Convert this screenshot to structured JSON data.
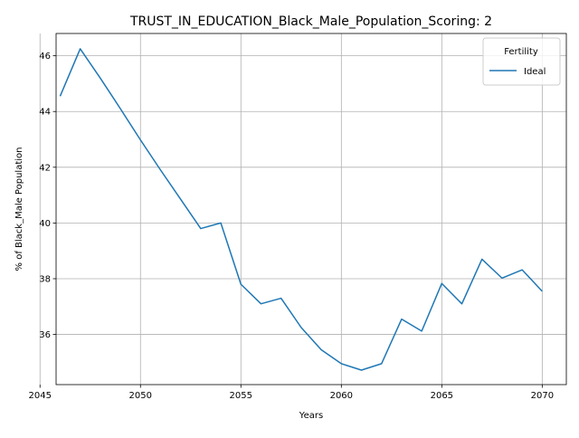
{
  "chart_data": {
    "type": "line",
    "title": "TRUST_IN_EDUCATION_Black_Male_Population_Scoring: 2",
    "xlabel": "Years",
    "ylabel": "% of Black_Male Population",
    "xlim": [
      2045.8,
      2071.2
    ],
    "ylim": [
      34.2,
      46.8
    ],
    "xticks": [
      2045,
      2050,
      2055,
      2060,
      2065,
      2070
    ],
    "yticks": [
      36,
      38,
      40,
      42,
      44,
      46
    ],
    "grid": true,
    "legend": {
      "title": "Fertility",
      "position": "top-right"
    },
    "series": [
      {
        "name": "Ideal",
        "color": "#1f77b4",
        "x": [
          2046,
          2047,
          2048,
          2049,
          2050,
          2051,
          2052,
          2053,
          2054,
          2055,
          2056,
          2057,
          2058,
          2059,
          2060,
          2061,
          2062,
          2063,
          2064,
          2065,
          2066,
          2067,
          2068,
          2069,
          2070
        ],
        "y": [
          44.55,
          46.25,
          45.2,
          44.1,
          42.98,
          41.9,
          40.85,
          39.8,
          40.0,
          37.8,
          37.1,
          37.3,
          36.25,
          35.45,
          34.95,
          34.72,
          34.95,
          36.55,
          36.12,
          37.83,
          37.1,
          38.7,
          38.02,
          38.32,
          37.55
        ]
      }
    ]
  }
}
